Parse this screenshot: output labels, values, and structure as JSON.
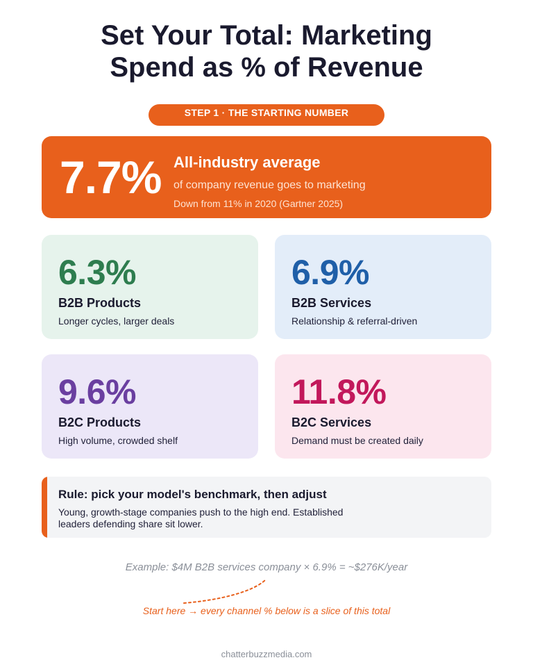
{
  "title": {
    "line1": "Set Your Total: Marketing",
    "line2": "Spend as % of Revenue"
  },
  "step_pill": "STEP 1 · THE STARTING NUMBER",
  "hero": {
    "value": "7.7%",
    "heading": "All-industry average",
    "subtext": "of company revenue goes to marketing",
    "note": "Down from 11% in 2020 (Gartner 2025)"
  },
  "cards": [
    {
      "value": "6.3%",
      "title": "B2B Products",
      "desc": "Longer cycles, larger deals",
      "bg": "#e6f3ec",
      "accent": "#2e7d4f"
    },
    {
      "value": "6.9%",
      "title": "B2B Services",
      "desc": "Relationship & referral-driven",
      "bg": "#e3edf9",
      "accent": "#1f5fa8"
    },
    {
      "value": "9.6%",
      "title": "B2C Products",
      "desc": "High volume, crowded shelf",
      "bg": "#ece7f8",
      "accent": "#6a3fa0"
    },
    {
      "value": "11.8%",
      "title": "B2C Services",
      "desc": "Demand must be created daily",
      "bg": "#fce6ee",
      "accent": "#c2185b"
    }
  ],
  "rule": {
    "heading": "Rule: pick your model's benchmark, then adjust",
    "text": "Young, growth-stage companies push to the high end. Established leaders defending share sit lower."
  },
  "example": "Example: $4M B2B services company × 6.9% = ~$276K/year",
  "start_here": "Start here → every channel % below is a slice of this total",
  "footer": "chatterbuzzmedia.com",
  "colors": {
    "accent_orange": "#e8601c",
    "title_dark": "#1a1a2e",
    "muted_gray": "#8a8f98"
  }
}
